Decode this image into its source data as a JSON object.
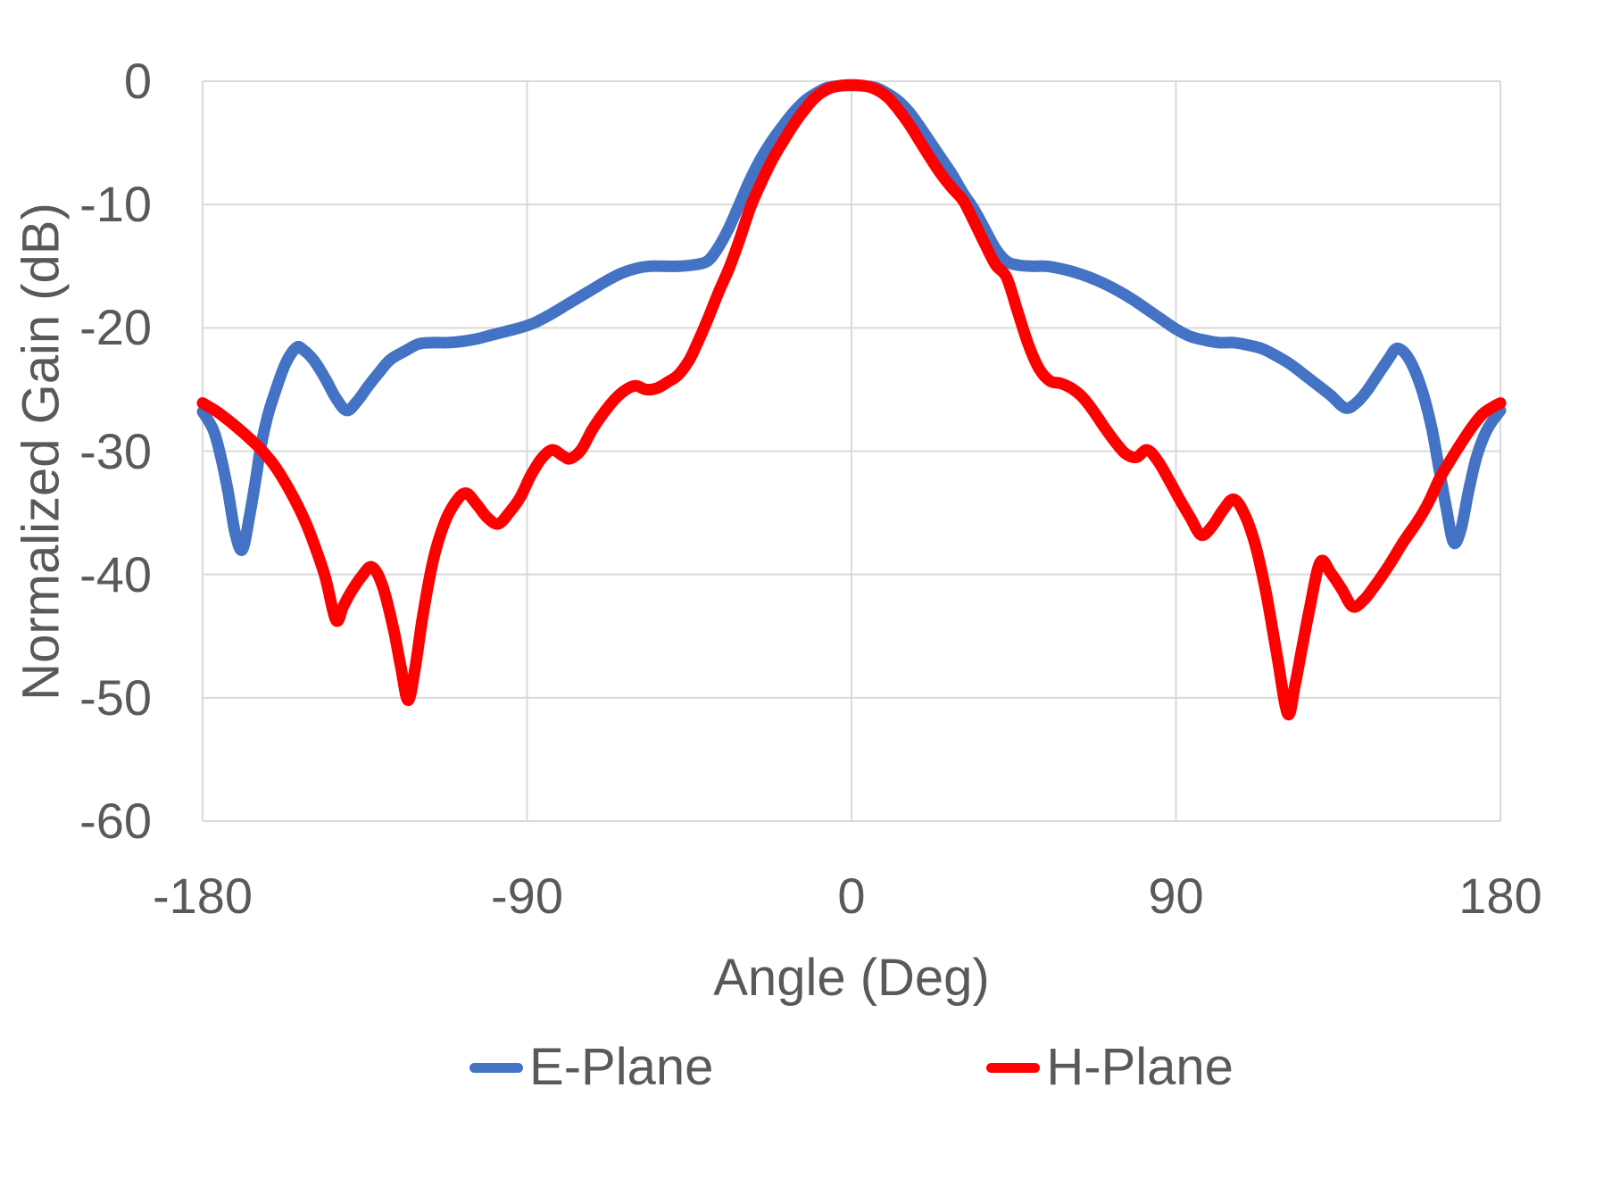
{
  "chart_data": {
    "type": "line",
    "title": "",
    "grid": true,
    "legend_position": "bottom",
    "grid_color": "#D9D9D9",
    "text_color": "#595959",
    "x_axis": {
      "title": "Angle (Deg)",
      "min": -180,
      "max": 180,
      "tick_step": 90,
      "ticks": [
        -180,
        -90,
        0,
        90,
        180
      ],
      "tick_labels": [
        "-180",
        "-90",
        "0",
        "90",
        "180"
      ]
    },
    "y_axis": {
      "title": "Normalized Gain (dB)",
      "min": -60,
      "max": 0,
      "tick_step": -10,
      "ticks": [
        0,
        -10,
        -20,
        -30,
        -40,
        -50,
        -60
      ],
      "tick_labels": [
        "0",
        "-10",
        "-20",
        "-30",
        "-40",
        "-50",
        "-60"
      ]
    },
    "series": [
      {
        "name": "E-Plane",
        "color": "#4472C4",
        "points": [
          [
            -180,
            -26.8
          ],
          [
            -177,
            -28.3
          ],
          [
            -175,
            -30.4
          ],
          [
            -173,
            -33.2
          ],
          [
            -171,
            -36.6
          ],
          [
            -169,
            -38.0
          ],
          [
            -167,
            -35.3
          ],
          [
            -165,
            -31.8
          ],
          [
            -164,
            -29.9
          ],
          [
            -162,
            -27.2
          ],
          [
            -160,
            -25.3
          ],
          [
            -157,
            -22.9
          ],
          [
            -154,
            -21.6
          ],
          [
            -152,
            -21.8
          ],
          [
            -149,
            -22.7
          ],
          [
            -146,
            -24.1
          ],
          [
            -143,
            -25.7
          ],
          [
            -140,
            -26.7
          ],
          [
            -137,
            -25.9
          ],
          [
            -134,
            -24.7
          ],
          [
            -131,
            -23.6
          ],
          [
            -128,
            -22.6
          ],
          [
            -124,
            -21.9
          ],
          [
            -120,
            -21.3
          ],
          [
            -116,
            -21.2
          ],
          [
            -112,
            -21.2
          ],
          [
            -108,
            -21.1
          ],
          [
            -104,
            -20.9
          ],
          [
            -100,
            -20.6
          ],
          [
            -96,
            -20.3
          ],
          [
            -92,
            -20.0
          ],
          [
            -88,
            -19.6
          ],
          [
            -84,
            -19.0
          ],
          [
            -80,
            -18.3
          ],
          [
            -76,
            -17.6
          ],
          [
            -72,
            -16.9
          ],
          [
            -68,
            -16.2
          ],
          [
            -64,
            -15.6
          ],
          [
            -60,
            -15.2
          ],
          [
            -56,
            -15.0
          ],
          [
            -52,
            -15.0
          ],
          [
            -48,
            -15.0
          ],
          [
            -44,
            -14.9
          ],
          [
            -40,
            -14.6
          ],
          [
            -37,
            -13.5
          ],
          [
            -34,
            -11.9
          ],
          [
            -31,
            -9.9
          ],
          [
            -28,
            -7.9
          ],
          [
            -25,
            -6.2
          ],
          [
            -22,
            -4.8
          ],
          [
            -19,
            -3.6
          ],
          [
            -16,
            -2.5
          ],
          [
            -13,
            -1.6
          ],
          [
            -10,
            -1.0
          ],
          [
            -7,
            -0.55
          ],
          [
            -4,
            -0.4
          ],
          [
            0,
            -0.35
          ],
          [
            4,
            -0.4
          ],
          [
            7,
            -0.55
          ],
          [
            10,
            -1.0
          ],
          [
            13,
            -1.6
          ],
          [
            16,
            -2.5
          ],
          [
            19,
            -3.7
          ],
          [
            22,
            -5.0
          ],
          [
            25,
            -6.3
          ],
          [
            28,
            -7.6
          ],
          [
            31,
            -9.1
          ],
          [
            34,
            -10.4
          ],
          [
            37,
            -12.0
          ],
          [
            40,
            -13.6
          ],
          [
            43,
            -14.6
          ],
          [
            46,
            -14.9
          ],
          [
            50,
            -15.0
          ],
          [
            54,
            -15.0
          ],
          [
            58,
            -15.2
          ],
          [
            62,
            -15.5
          ],
          [
            66,
            -15.9
          ],
          [
            70,
            -16.4
          ],
          [
            74,
            -17.0
          ],
          [
            78,
            -17.7
          ],
          [
            82,
            -18.5
          ],
          [
            86,
            -19.3
          ],
          [
            90,
            -20.1
          ],
          [
            94,
            -20.7
          ],
          [
            98,
            -21.0
          ],
          [
            102,
            -21.2
          ],
          [
            106,
            -21.2
          ],
          [
            110,
            -21.4
          ],
          [
            114,
            -21.7
          ],
          [
            118,
            -22.3
          ],
          [
            122,
            -23.0
          ],
          [
            126,
            -23.9
          ],
          [
            130,
            -24.8
          ],
          [
            133,
            -25.5
          ],
          [
            137,
            -26.5
          ],
          [
            140,
            -26.1
          ],
          [
            143,
            -25.1
          ],
          [
            146,
            -23.8
          ],
          [
            149,
            -22.5
          ],
          [
            151,
            -21.7
          ],
          [
            153,
            -21.9
          ],
          [
            155,
            -22.7
          ],
          [
            157,
            -24.0
          ],
          [
            159,
            -25.8
          ],
          [
            161,
            -28.2
          ],
          [
            163,
            -31.4
          ],
          [
            165,
            -34.6
          ],
          [
            167,
            -37.4
          ],
          [
            169,
            -36.4
          ],
          [
            171,
            -33.5
          ],
          [
            173,
            -30.9
          ],
          [
            175,
            -29.1
          ],
          [
            177,
            -27.9
          ],
          [
            180,
            -26.7
          ]
        ]
      },
      {
        "name": "H-Plane",
        "color": "#FF0000",
        "points": [
          [
            -180,
            -26.1
          ],
          [
            -176,
            -26.8
          ],
          [
            -172,
            -27.7
          ],
          [
            -168,
            -28.7
          ],
          [
            -164,
            -29.8
          ],
          [
            -160,
            -31.2
          ],
          [
            -156,
            -33.1
          ],
          [
            -152,
            -35.4
          ],
          [
            -149,
            -37.6
          ],
          [
            -146,
            -40.2
          ],
          [
            -143,
            -43.7
          ],
          [
            -141,
            -42.6
          ],
          [
            -139,
            -41.5
          ],
          [
            -136,
            -40.2
          ],
          [
            -133,
            -39.4
          ],
          [
            -130,
            -41.0
          ],
          [
            -127,
            -44.5
          ],
          [
            -125,
            -47.5
          ],
          [
            -123,
            -50.2
          ],
          [
            -121,
            -47.5
          ],
          [
            -119,
            -43.5
          ],
          [
            -116,
            -38.8
          ],
          [
            -113,
            -35.9
          ],
          [
            -110,
            -34.2
          ],
          [
            -107,
            -33.4
          ],
          [
            -104,
            -34.3
          ],
          [
            -101,
            -35.4
          ],
          [
            -98,
            -35.9
          ],
          [
            -95,
            -35.0
          ],
          [
            -92,
            -33.8
          ],
          [
            -89,
            -32.0
          ],
          [
            -86,
            -30.6
          ],
          [
            -83,
            -29.9
          ],
          [
            -80,
            -30.4
          ],
          [
            -78,
            -30.6
          ],
          [
            -75,
            -29.9
          ],
          [
            -72,
            -28.3
          ],
          [
            -69,
            -27.0
          ],
          [
            -66,
            -25.9
          ],
          [
            -63,
            -25.1
          ],
          [
            -60,
            -24.7
          ],
          [
            -57,
            -25.0
          ],
          [
            -54,
            -24.9
          ],
          [
            -51,
            -24.4
          ],
          [
            -48,
            -23.8
          ],
          [
            -45,
            -22.6
          ],
          [
            -43,
            -21.4
          ],
          [
            -40,
            -19.4
          ],
          [
            -37,
            -17.2
          ],
          [
            -34,
            -15.2
          ],
          [
            -31,
            -12.8
          ],
          [
            -28,
            -10.2
          ],
          [
            -25,
            -8.2
          ],
          [
            -22,
            -6.4
          ],
          [
            -19,
            -4.9
          ],
          [
            -16,
            -3.5
          ],
          [
            -13,
            -2.3
          ],
          [
            -10,
            -1.3
          ],
          [
            -7,
            -0.7
          ],
          [
            -4,
            -0.4
          ],
          [
            0,
            -0.3
          ],
          [
            4,
            -0.4
          ],
          [
            7,
            -0.7
          ],
          [
            10,
            -1.3
          ],
          [
            13,
            -2.3
          ],
          [
            16,
            -3.5
          ],
          [
            19,
            -4.9
          ],
          [
            22,
            -6.3
          ],
          [
            25,
            -7.6
          ],
          [
            28,
            -8.7
          ],
          [
            31,
            -9.7
          ],
          [
            34,
            -11.4
          ],
          [
            37,
            -13.2
          ],
          [
            40,
            -14.9
          ],
          [
            43,
            -15.9
          ],
          [
            46,
            -18.6
          ],
          [
            49,
            -21.3
          ],
          [
            52,
            -23.3
          ],
          [
            55,
            -24.3
          ],
          [
            58,
            -24.5
          ],
          [
            61,
            -24.9
          ],
          [
            64,
            -25.6
          ],
          [
            67,
            -26.7
          ],
          [
            70,
            -28.0
          ],
          [
            73,
            -29.2
          ],
          [
            76,
            -30.2
          ],
          [
            79,
            -30.5
          ],
          [
            82,
            -29.9
          ],
          [
            85,
            -30.8
          ],
          [
            88,
            -32.3
          ],
          [
            91,
            -33.9
          ],
          [
            94,
            -35.4
          ],
          [
            97,
            -36.8
          ],
          [
            100,
            -36.1
          ],
          [
            103,
            -34.8
          ],
          [
            106,
            -33.9
          ],
          [
            109,
            -35.1
          ],
          [
            112,
            -37.6
          ],
          [
            115,
            -41.5
          ],
          [
            118,
            -46.5
          ],
          [
            121,
            -51.3
          ],
          [
            123,
            -49.0
          ],
          [
            125,
            -45.9
          ],
          [
            127,
            -42.9
          ],
          [
            130,
            -39.0
          ],
          [
            133,
            -39.9
          ],
          [
            136,
            -41.2
          ],
          [
            139,
            -42.6
          ],
          [
            142,
            -42.1
          ],
          [
            145,
            -41.0
          ],
          [
            149,
            -39.3
          ],
          [
            153,
            -37.4
          ],
          [
            157,
            -35.7
          ],
          [
            160,
            -34.2
          ],
          [
            163,
            -32.3
          ],
          [
            166,
            -30.8
          ],
          [
            169,
            -29.4
          ],
          [
            172,
            -28.1
          ],
          [
            175,
            -27.0
          ],
          [
            178,
            -26.4
          ],
          [
            180,
            -26.1
          ]
        ]
      }
    ]
  }
}
